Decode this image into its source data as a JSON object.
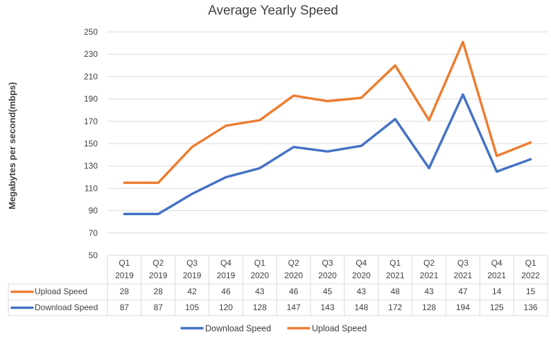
{
  "chart_data": {
    "type": "line",
    "title": "Average Yearly Speed",
    "ylabel": "Megabytes per second(mbps)",
    "ylim": [
      50,
      250
    ],
    "yticks": [
      50,
      70,
      90,
      110,
      130,
      150,
      170,
      190,
      210,
      230,
      250
    ],
    "grid": true,
    "legend_position": "bottom",
    "categories": [
      [
        "Q1",
        "2019"
      ],
      [
        "Q2",
        "2019"
      ],
      [
        "Q3",
        "2019"
      ],
      [
        "Q4",
        "2019"
      ],
      [
        "Q1",
        "2020"
      ],
      [
        "Q2",
        "2020"
      ],
      [
        "Q3",
        "2020"
      ],
      [
        "Q4",
        "2020"
      ],
      [
        "Q1",
        "2021"
      ],
      [
        "Q2",
        "2021"
      ],
      [
        "Q3",
        "2021"
      ],
      [
        "Q4",
        "2021"
      ],
      [
        "Q1",
        "2022"
      ]
    ],
    "series": [
      {
        "name": "Download Speed",
        "color": "#4472C4",
        "values": [
          87,
          87,
          105,
          120,
          128,
          147,
          143,
          148,
          172,
          128,
          194,
          125,
          136
        ]
      },
      {
        "name": "Upload Speed",
        "color": "#ED7D31",
        "values": [
          115,
          115,
          147,
          166,
          171,
          193,
          188,
          191,
          220,
          171,
          241,
          139,
          151
        ],
        "table_values": [
          28,
          28,
          42,
          46,
          43,
          46,
          45,
          43,
          48,
          43,
          47,
          14,
          15
        ]
      }
    ],
    "table_rows": [
      "Upload Speed",
      "Download Speed"
    ],
    "legend": [
      "Download Speed",
      "Upload Speed"
    ]
  }
}
